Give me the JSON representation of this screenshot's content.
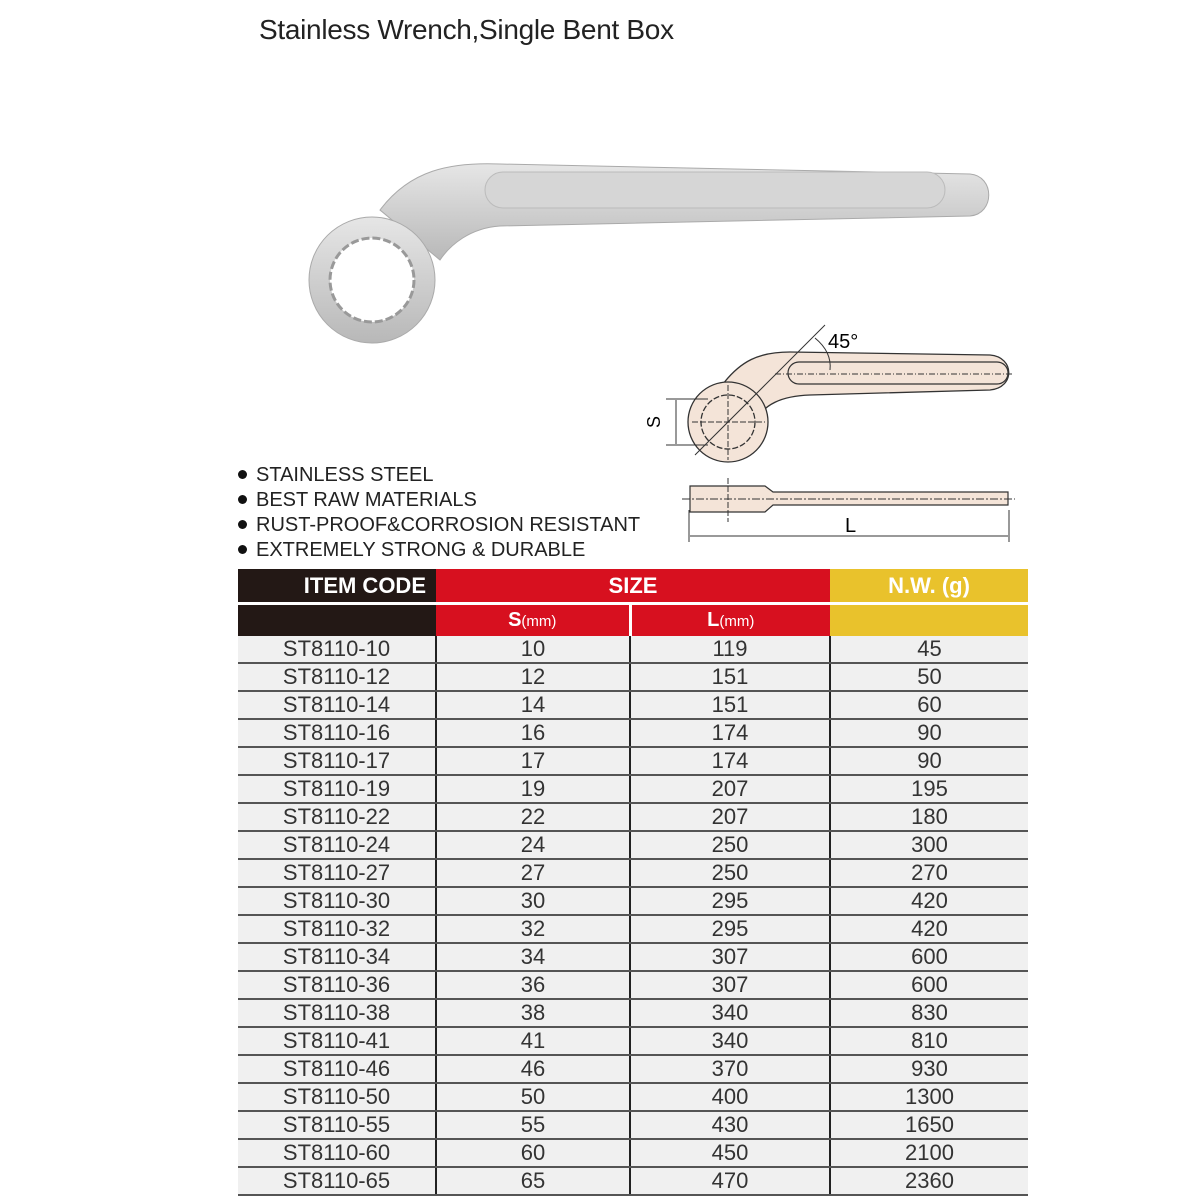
{
  "title": "Stainless Wrench,Single Bent Box",
  "diagram": {
    "angle_label": "45°",
    "s_label": "S",
    "l_label": "L"
  },
  "features": [
    "STAINLESS STEEL",
    "BEST RAW MATERIALS",
    "RUST-PROOF&CORROSION RESISTANT",
    "EXTREMELY STRONG & DURABLE"
  ],
  "table": {
    "headers": {
      "item_code": "ITEM CODE",
      "size": "SIZE",
      "nw": "N.W. (g)",
      "s": "S",
      "s_unit": "(mm)",
      "l": "L",
      "l_unit": "(mm)"
    },
    "colors": {
      "black": "#231815",
      "red": "#d7101f",
      "yellow": "#e9c22c"
    },
    "rows": [
      [
        "ST8110-10",
        "10",
        "119",
        "45"
      ],
      [
        "ST8110-12",
        "12",
        "151",
        "50"
      ],
      [
        "ST8110-14",
        "14",
        "151",
        "60"
      ],
      [
        "ST8110-16",
        "16",
        "174",
        "90"
      ],
      [
        "ST8110-17",
        "17",
        "174",
        "90"
      ],
      [
        "ST8110-19",
        "19",
        "207",
        "195"
      ],
      [
        "ST8110-22",
        "22",
        "207",
        "180"
      ],
      [
        "ST8110-24",
        "24",
        "250",
        "300"
      ],
      [
        "ST8110-27",
        "27",
        "250",
        "270"
      ],
      [
        "ST8110-30",
        "30",
        "295",
        "420"
      ],
      [
        "ST8110-32",
        "32",
        "295",
        "420"
      ],
      [
        "ST8110-34",
        "34",
        "307",
        "600"
      ],
      [
        "ST8110-36",
        "36",
        "307",
        "600"
      ],
      [
        "ST8110-38",
        "38",
        "340",
        "830"
      ],
      [
        "ST8110-41",
        "41",
        "340",
        "810"
      ],
      [
        "ST8110-46",
        "46",
        "370",
        "930"
      ],
      [
        "ST8110-50",
        "50",
        "400",
        "1300"
      ],
      [
        "ST8110-55",
        "55",
        "430",
        "1650"
      ],
      [
        "ST8110-60",
        "60",
        "450",
        "2100"
      ],
      [
        "ST8110-65",
        "65",
        "470",
        "2360"
      ]
    ]
  }
}
